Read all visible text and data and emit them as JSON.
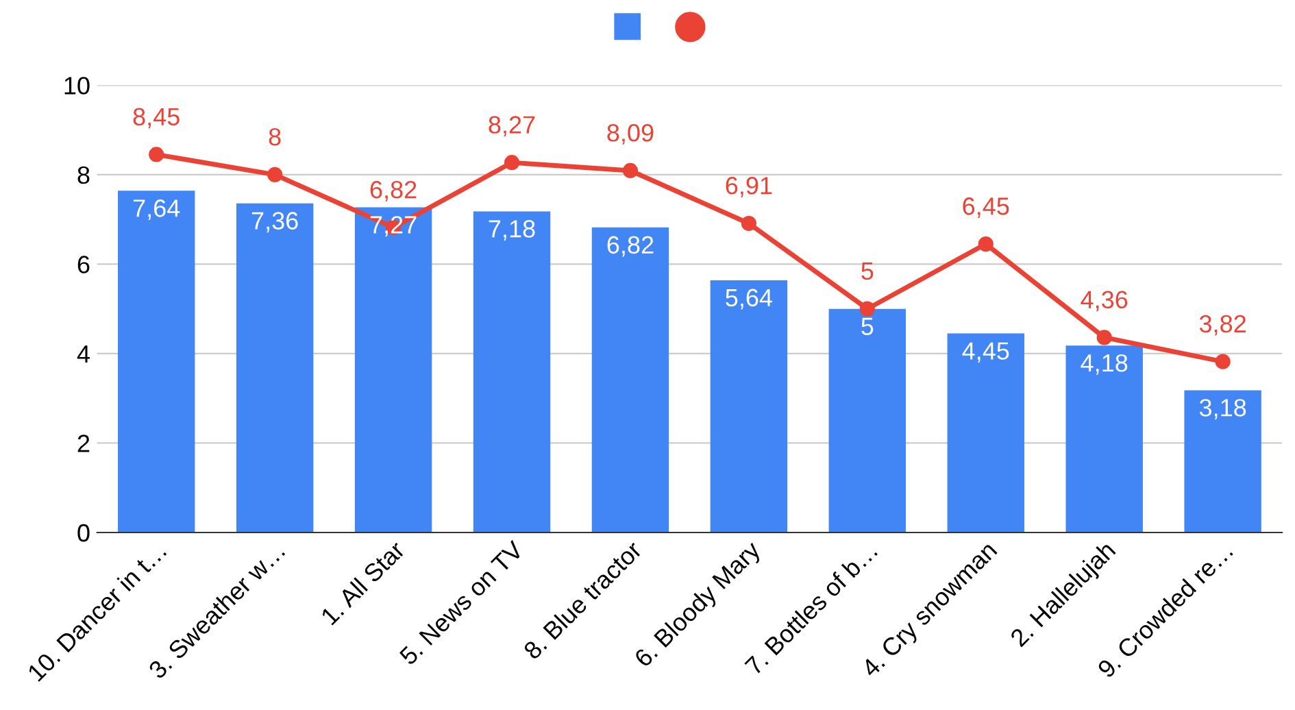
{
  "chart_data": {
    "type": "bar",
    "categories": [
      "10. Dancer in t…",
      "3. Sweather w…",
      "1. All Star",
      "5. News on TV",
      "8. Blue tractor",
      "6. Bloody Mary",
      "7. Bottles of b…",
      "4. Cry snowman",
      "2. Hallelujah",
      "9. Crowded re…"
    ],
    "series": [
      {
        "color": "#4285f4",
        "values": [
          7.64,
          7.36,
          7.27,
          7.18,
          6.82,
          5.64,
          5,
          4.45,
          4.18,
          3.18
        ],
        "value_labels": [
          "7,64",
          "7,36",
          "7,27",
          "7,18",
          "6,82",
          "5,64",
          "5",
          "4,45",
          "4,18",
          "3,18"
        ]
      },
      {
        "type": "line",
        "color": "#ea4335",
        "marker": "circle",
        "values": [
          8.45,
          8,
          6.82,
          8.27,
          8.09,
          6.91,
          5,
          6.45,
          4.36,
          3.82
        ],
        "value_labels": [
          "8,45",
          "8",
          "6,82",
          "8,27",
          "8,09",
          "6,91",
          "5",
          "6,45",
          "4,36",
          "3,82"
        ]
      }
    ],
    "ylim": [
      0,
      10
    ],
    "yticks": [
      0,
      2,
      4,
      6,
      8,
      10
    ],
    "grid": "y"
  }
}
